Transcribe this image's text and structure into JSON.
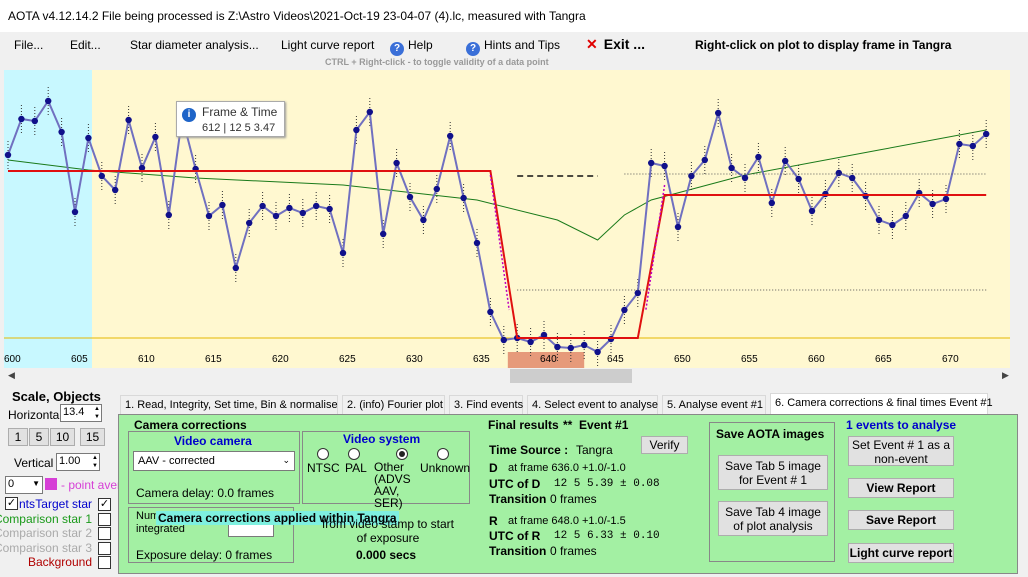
{
  "window": {
    "title": "AOTA v4.12.14.2    File being processed is Z:\\Astro Videos\\2021-Oct-19 23-04-07 (4).lc, measured with Tangra"
  },
  "menu": {
    "file": "File...",
    "edit": "Edit...",
    "star_diameter": "Star diameter analysis...",
    "light_curve_report": "Light curve report",
    "help": "Help",
    "hints": "Hints and Tips",
    "exit": "Exit ...",
    "right_click_note": "Right-click on plot to display frame in Tangra"
  },
  "plot": {
    "hint": "CTRL + Right-click   -  to toggle validity of a data point",
    "tooltip_title": "Frame & Time",
    "tooltip_value": "612 | 12  5  3.47",
    "x_ticks": [
      "600",
      "605",
      "610",
      "615",
      "620",
      "625",
      "630",
      "635",
      "640",
      "645",
      "650",
      "655",
      "660",
      "665",
      "670"
    ]
  },
  "chart_data": {
    "type": "line",
    "x": [
      600,
      601,
      602,
      603,
      604,
      605,
      606,
      607,
      608,
      609,
      610,
      611,
      612,
      613,
      614,
      615,
      616,
      617,
      618,
      619,
      620,
      621,
      622,
      623,
      624,
      625,
      626,
      627,
      628,
      629,
      630,
      631,
      632,
      633,
      634,
      635,
      636,
      637,
      638,
      639,
      640,
      641,
      642,
      643,
      644,
      645,
      646,
      647,
      648,
      649,
      650,
      651,
      652,
      653,
      654,
      655,
      656,
      657,
      658,
      659,
      660,
      661,
      662,
      663,
      664,
      665,
      666,
      667,
      668,
      669,
      670,
      671,
      672,
      673
    ],
    "series": [
      {
        "name": "Target star",
        "values": [
          155,
          119,
          121,
          101,
          132,
          212,
          138,
          176,
          190,
          120,
          168,
          137,
          215,
          117,
          169,
          216,
          205,
          268,
          223,
          206,
          216,
          208,
          213,
          206,
          209,
          253,
          130,
          112,
          234,
          163,
          197,
          220,
          189,
          136,
          198,
          243,
          312,
          340,
          338,
          342,
          335,
          347,
          348,
          345,
          352,
          339,
          310,
          293,
          163,
          166,
          227,
          176,
          160,
          113,
          168,
          178,
          157,
          203,
          161,
          179,
          211,
          194,
          173,
          178,
          196,
          220,
          225,
          216,
          193,
          204,
          199,
          144,
          146,
          134
        ]
      }
    ],
    "xlim": [
      600,
      673
    ]
  },
  "scale": {
    "title": "Scale,  Objects",
    "horizontal_label": "Horizontal",
    "horizontal_value": "13.4",
    "zoom_buttons": [
      "1",
      "5",
      "10",
      "15"
    ],
    "vertical_label": "Vertical",
    "vertical_value": "1.00",
    "point_avg_value": "0",
    "point_avg_label": "- point average"
  },
  "objects": [
    {
      "label": "Target star",
      "checked": true
    },
    {
      "label": "Comparison star 1",
      "checked": false
    },
    {
      "label": "Comparison star 2",
      "checked": false
    },
    {
      "label": "Comparison star 3",
      "checked": false
    },
    {
      "label": "Background",
      "checked": false
    }
  ],
  "objects_extra_label": "nts",
  "tabs": [
    "1.  Read, Integrity, Set time, Bin & normalise",
    "2. (info)  Fourier plot",
    "3. Find events",
    "4. Select event to analyse",
    "5. Analyse event #1",
    "6. Camera corrections & final times Event #1"
  ],
  "camera_corrections": {
    "title": "Camera corrections",
    "video_camera_title": "Video camera",
    "camera_select": "AAV - corrected",
    "camera_delay": "Camera delay: 0.0 frames",
    "video_system_title": "Video system",
    "systems": [
      "NTSC",
      "PAL",
      "Other (ADVS AAV, SER)",
      "Unknown"
    ],
    "selected_system": "Other (ADVS AAV, SER)",
    "frames_integrated_label": "Num frames integrated",
    "applied_banner": "Camera corrections applied within Tangra",
    "offset_label": "from video stamp to start of exposure",
    "offset_value": "0.000 secs",
    "exposure_delay": "Exposure delay: 0 frames"
  },
  "final_results": {
    "title": "Final results",
    "event": "Event #1",
    "time_source_label": "Time Source :",
    "time_source": "Tangra",
    "verify": "Verify",
    "d_frame": "at frame 636.0  +1.0/-1.0",
    "utc_d_label": "UTC of D",
    "utc_d_value": "12  5   5.39  ± 0.08",
    "transition_d": "0 frames",
    "r_frame": "at frame 648.0  +1.0/-1.5",
    "utc_r_label": "UTC of R",
    "utc_r_value": "12  5   6.33  ± 0.10",
    "transition_r": "0 frames",
    "transition_label": "Transition"
  },
  "save_images": {
    "title": "Save AOTA images",
    "save_tab5": "Save Tab 5 image for Event # 1",
    "save_tab4": "Save Tab 4 image of plot analysis"
  },
  "events": {
    "title": "1  events to analyse",
    "set_non_event": "Set Event # 1 as a non-event",
    "view_report": "View Report",
    "save_report": "Save Report",
    "light_curve_report": "Light curve report"
  },
  "colors": {
    "accent_green": "#a3f0a3",
    "plot_yellow": "#fff8d0",
    "plot_cyan": "#c8f8ff",
    "exit_red": "#e00000",
    "fit_red": "#e01010"
  }
}
